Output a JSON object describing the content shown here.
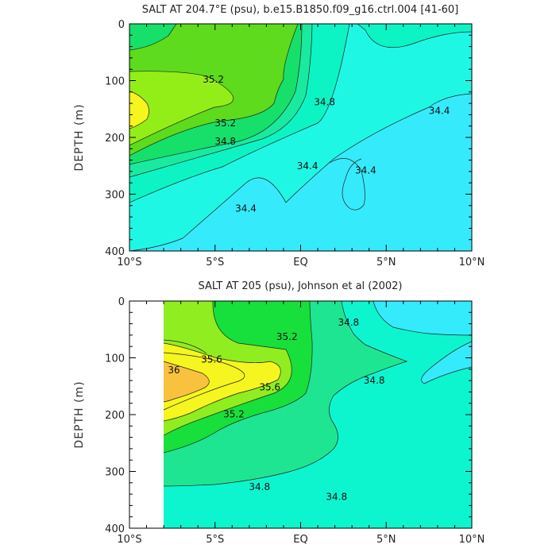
{
  "chart_data": [
    {
      "type": "contour",
      "title": "SALT AT 204.7°E (psu), b.e15.B1850.f09_g16.ctrl.004 [41-60]",
      "xlabel": "",
      "ylabel": "DEPTH (m)",
      "x_ticks": [
        "10°S",
        "5°S",
        "EQ",
        "5°N",
        "10°N"
      ],
      "x_tick_values": [
        -10,
        -5,
        0,
        5,
        10
      ],
      "y_ticks": [
        "0",
        "100",
        "200",
        "300",
        "400"
      ],
      "y_tick_values": [
        0,
        100,
        200,
        300,
        400
      ],
      "xlim": [
        -10,
        10
      ],
      "ylim": [
        400,
        0
      ],
      "fill_colors": {
        "34.4": "#35ebfb",
        "34.6": "#1ff7e5",
        "34.8": "#0cf4c3",
        "35.0": "#19ea9f",
        "35.2": "#16e06a",
        "35.4": "#5ddb1c",
        "35.6": "#93ee18",
        "35.8": "#f6f51d"
      },
      "contour_labels": [
        {
          "text": "35.2",
          "x": -5.1,
          "y": 98
        },
        {
          "text": "35.2",
          "x": -4.4,
          "y": 175
        },
        {
          "text": "34.8",
          "x": 1.4,
          "y": 138
        },
        {
          "text": "34.8",
          "x": -4.4,
          "y": 207
        },
        {
          "text": "34.4",
          "x": 8.1,
          "y": 153
        },
        {
          "text": "34.4",
          "x": 0.4,
          "y": 250
        },
        {
          "text": "34.4",
          "x": 3.8,
          "y": 258
        },
        {
          "text": "34.4",
          "x": -3.2,
          "y": 325
        }
      ]
    },
    {
      "type": "contour",
      "title": "SALT AT 205 (psu), Johnson et al (2002)",
      "xlabel": "",
      "ylabel": "DEPTH (m)",
      "x_ticks": [
        "10°S",
        "5°S",
        "EQ",
        "5°N",
        "10°N"
      ],
      "x_tick_values": [
        -10,
        -5,
        0,
        5,
        10
      ],
      "y_ticks": [
        "0",
        "100",
        "200",
        "300",
        "400"
      ],
      "y_tick_values": [
        0,
        100,
        200,
        300,
        400
      ],
      "xlim": [
        -10,
        10
      ],
      "ylim": [
        400,
        0
      ],
      "data_extent_x": [
        -8,
        10
      ],
      "fill_colors": {
        "34.6": "#33ebfb",
        "34.8": "#0df5ce",
        "35.0": "#1ee592",
        "35.2": "#17df3b",
        "35.4": "#90ed1f",
        "35.6": "#f5f51f",
        "36.0": "#f8c23e"
      },
      "contour_labels": [
        {
          "text": "35.2",
          "x": -0.8,
          "y": 63
        },
        {
          "text": "34.8",
          "x": 2.8,
          "y": 38
        },
        {
          "text": "35.6",
          "x": -5.2,
          "y": 103
        },
        {
          "text": "36",
          "x": -7.4,
          "y": 122
        },
        {
          "text": "35.6",
          "x": -1.8,
          "y": 152
        },
        {
          "text": "35.2",
          "x": -3.9,
          "y": 199
        },
        {
          "text": "34.8",
          "x": 4.3,
          "y": 140
        },
        {
          "text": "34.8",
          "x": 2.1,
          "y": 345
        },
        {
          "text": "34.8",
          "x": -2.4,
          "y": 327
        }
      ]
    }
  ]
}
